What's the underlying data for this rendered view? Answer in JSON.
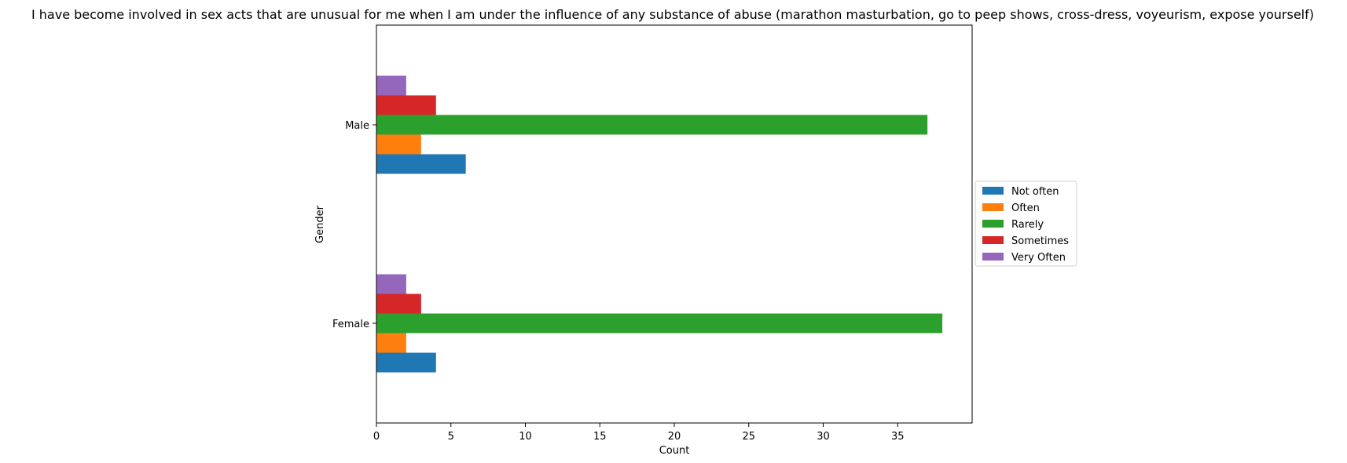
{
  "chart_data": {
    "type": "bar",
    "orientation": "horizontal",
    "title": "I have become involved in sex acts that are unusual for me when I am under the influence of any substance of abuse (marathon masturbation, go to peep shows, cross-dress, voyeurism, expose yourself)",
    "xlabel": "Count",
    "ylabel": "Gender",
    "categories": [
      "Female",
      "Male"
    ],
    "series": [
      {
        "name": "Not often",
        "color": "#1f77b4",
        "values": [
          4,
          6
        ]
      },
      {
        "name": "Often",
        "color": "#ff7f0e",
        "values": [
          2,
          3
        ]
      },
      {
        "name": "Rarely",
        "color": "#2ca02c",
        "values": [
          38,
          37
        ]
      },
      {
        "name": "Sometimes",
        "color": "#d62728",
        "values": [
          3,
          4
        ]
      },
      {
        "name": "Very Often",
        "color": "#9467bd",
        "values": [
          2,
          2
        ]
      }
    ],
    "xlim": [
      0,
      40
    ],
    "xticks": [
      0,
      5,
      10,
      15,
      20,
      25,
      30,
      35
    ],
    "grid": false,
    "legend": "center-right-outside"
  }
}
